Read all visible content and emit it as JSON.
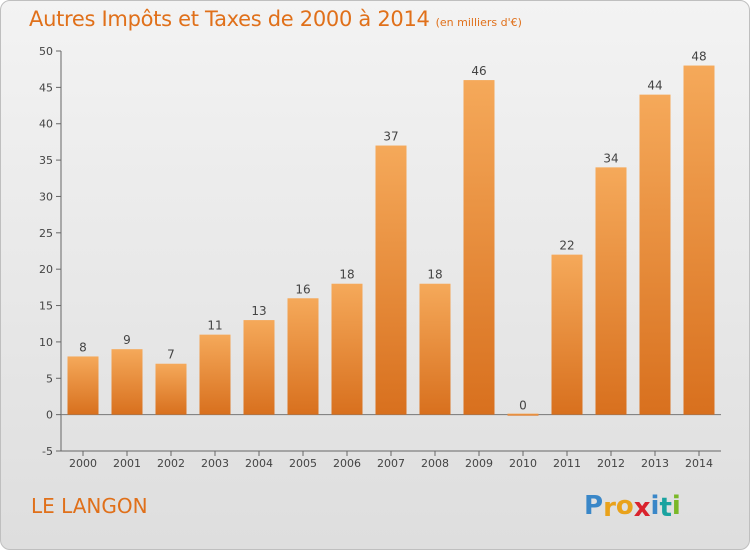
{
  "header": {
    "title": "Autres Impôts et Taxes de 2000 à 2014",
    "subtitle": "(en milliers d'€)"
  },
  "footer": {
    "city": "LE LANGON",
    "logo_text": "Proxiti"
  },
  "colors": {
    "accent": "#e0701a",
    "bar_top": "#f5a95a",
    "bar_bottom": "#d8701e",
    "logo_letters": [
      "#3a87c8",
      "#e9a21b",
      "#e9a21b",
      "#d9232d",
      "#3a87c8",
      "#1aa3a0",
      "#7ab828"
    ]
  },
  "chart_data": {
    "type": "bar",
    "categories": [
      "2000",
      "2001",
      "2002",
      "2003",
      "2004",
      "2005",
      "2006",
      "2007",
      "2008",
      "2009",
      "2010",
      "2011",
      "2012",
      "2013",
      "2014"
    ],
    "values": [
      8,
      9,
      7,
      11,
      13,
      16,
      18,
      37,
      18,
      46,
      0,
      22,
      34,
      44,
      48
    ],
    "data_labels": [
      "8",
      "9",
      "7",
      "11",
      "13",
      "16",
      "18",
      "37",
      "18",
      "46",
      "0",
      "22",
      "34",
      "44",
      "48"
    ],
    "title": "Autres Impôts et Taxes de 2000 à 2014",
    "xlabel": "",
    "ylabel": "",
    "ylim": [
      -5,
      50
    ],
    "yticks": [
      -5,
      0,
      5,
      10,
      15,
      20,
      25,
      30,
      35,
      40,
      45,
      50
    ],
    "grid": false
  }
}
